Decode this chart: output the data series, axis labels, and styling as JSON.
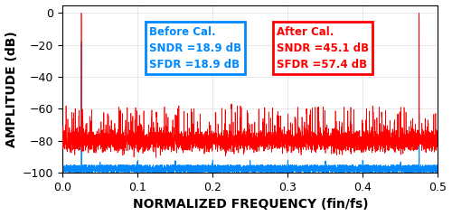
{
  "title": "",
  "xlabel": "NORMALIZED FREQUENCY (fin/fs)",
  "ylabel": "AMPLITUDE (dB)",
  "xlim": [
    0,
    0.5
  ],
  "ylim": [
    -100,
    5
  ],
  "yticks": [
    0,
    -20,
    -40,
    -60,
    -80,
    -100
  ],
  "xticks": [
    0,
    0.1,
    0.2,
    0.3,
    0.4,
    0.5
  ],
  "blue_color": "#0088FF",
  "red_color": "#FF0000",
  "before_cal_text": "Before Cal.",
  "after_cal_text": "After Cal.",
  "before_sndr": "SNDR =18.9 dB",
  "before_sfdr": "SFDR =18.9 dB",
  "after_sndr": "SNDR =45.1 dB",
  "after_sfdr": "SFDR =57.4 dB",
  "annotation_fontsize": 8.5,
  "axis_label_fontsize": 10,
  "tick_fontsize": 9,
  "figsize": [
    5.0,
    2.39
  ],
  "dpi": 100
}
